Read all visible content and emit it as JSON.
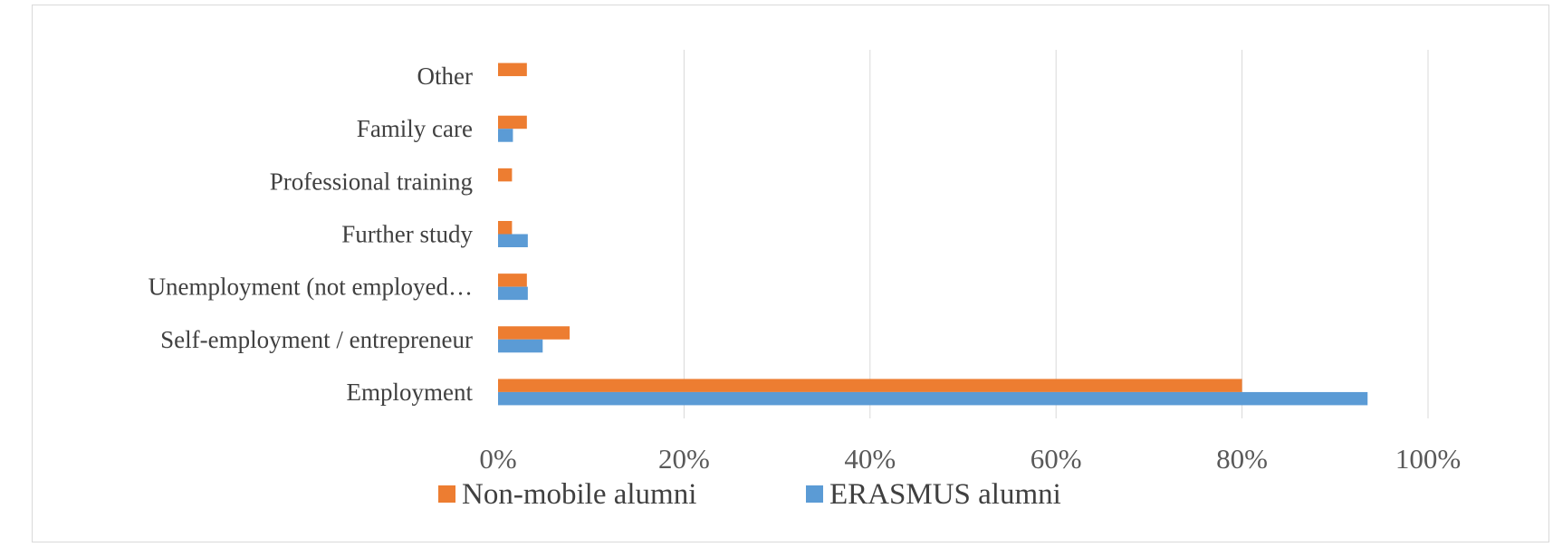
{
  "chart_data": {
    "type": "bar",
    "orientation": "horizontal",
    "categories": [
      "Employment",
      "Self-employment / entrepreneur",
      "Unemployment (not employed…",
      "Further study",
      "Professional training",
      "Family care",
      "Other"
    ],
    "series": [
      {
        "name": "Non-mobile alumni",
        "color": "#ED7D31",
        "values": [
          80,
          7.7,
          3.1,
          1.5,
          1.5,
          3.1,
          3.1
        ]
      },
      {
        "name": "ERASMUS alumni",
        "color": "#5B9BD5",
        "values": [
          93.5,
          4.8,
          3.2,
          3.2,
          0,
          1.6,
          0
        ]
      }
    ],
    "xlim": [
      0,
      100
    ],
    "xticks": [
      "0%",
      "20%",
      "40%",
      "60%",
      "80%",
      "100%"
    ],
    "grid": true,
    "legend_position": "bottom",
    "title": "",
    "xlabel": "",
    "ylabel": ""
  }
}
